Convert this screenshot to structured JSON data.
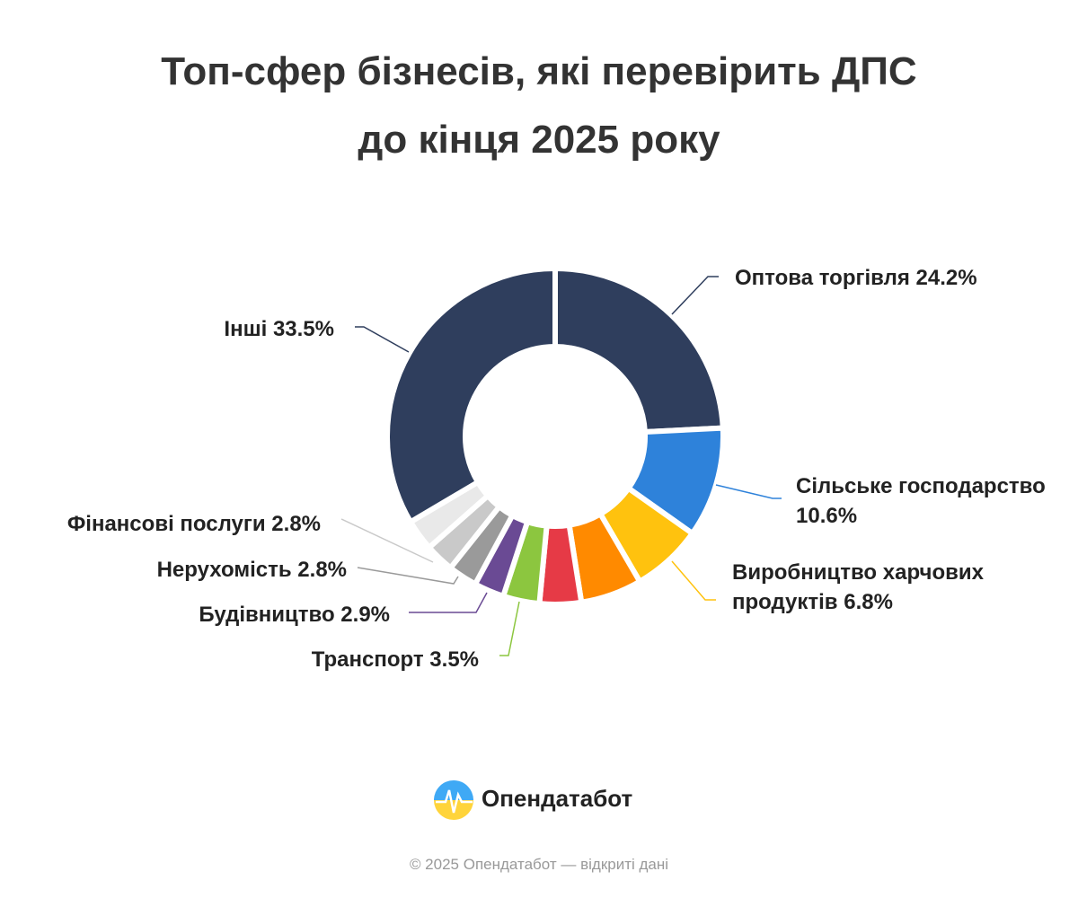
{
  "chart_data": {
    "type": "donut",
    "title": "Топ-сфер бізнесів, які перевірить ДПС до кінця 2025 року",
    "categories": [
      "Оптова торгівля",
      "Сільське господарство",
      "Виробництво харчових продуктів",
      null,
      null,
      "Транспорт",
      "Будівництво",
      "Нерухомість",
      "Фінансові послуги",
      null,
      "Інші"
    ],
    "values": [
      24.2,
      10.6,
      6.8,
      5.9,
      4.0,
      3.5,
      2.9,
      2.8,
      2.8,
      3.0,
      33.5
    ],
    "value_labels": [
      "24.2%",
      "10.6%",
      "6.8%",
      null,
      null,
      "3.5%",
      "2.9%",
      "2.8%",
      "2.8%",
      null,
      "33.5%"
    ],
    "colors": [
      "#2f3e5d",
      "#2e82da",
      "#ffc20e",
      "#ff8a00",
      "#e63a46",
      "#8cc63f",
      "#6a4a94",
      "#9a9a9a",
      "#c9c9c9",
      "#e9e9e9",
      "#2f3e5d"
    ]
  },
  "brand": "Опендатабот",
  "footer": "© 2025 Опендатабот — відкриті дані"
}
